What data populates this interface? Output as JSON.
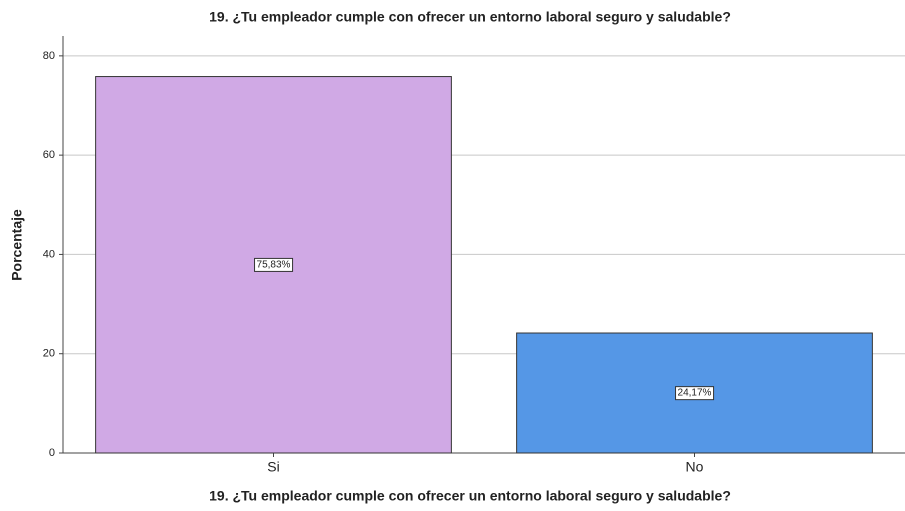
{
  "chart_data": {
    "type": "bar",
    "title": "19. ¿Tu empleador cumple con ofrecer un entorno laboral seguro y saludable?",
    "x_label": "19. ¿Tu empleador cumple con ofrecer un entorno laboral seguro y saludable?",
    "y_label": "Porcentaje",
    "categories": [
      "Si",
      "No"
    ],
    "values": [
      75.83,
      24.17
    ],
    "value_labels": [
      "75,83%",
      "24,17%"
    ],
    "colors": [
      "#d0a9e5",
      "#5597e6"
    ],
    "ylim": [
      0,
      84
    ],
    "yticks": [
      0,
      20,
      40,
      60,
      80
    ],
    "grid": true
  }
}
